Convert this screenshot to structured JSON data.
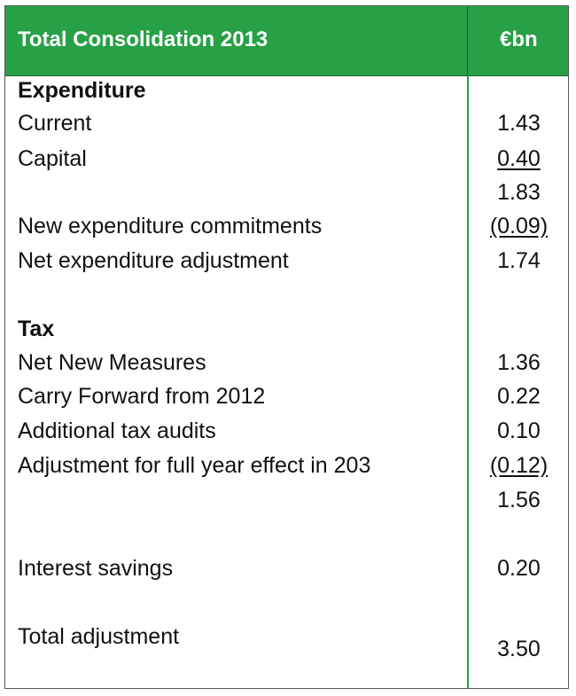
{
  "header": {
    "title": "Total Consolidation 2013",
    "unit": "€bn"
  },
  "rows": [
    {
      "label": "Expenditure",
      "value": "",
      "bold": true,
      "underline": false
    },
    {
      "label": "Current",
      "value": "1.43",
      "bold": false,
      "underline": false
    },
    {
      "label": "Capital",
      "value": "0.40",
      "bold": false,
      "underline": true
    },
    {
      "label": "",
      "value": "1.83",
      "bold": false,
      "underline": false
    },
    {
      "label": "New expenditure commitments",
      "value": "(0.09)",
      "bold": false,
      "underline": true
    },
    {
      "label": "Net expenditure adjustment",
      "value": "1.74",
      "bold": false,
      "underline": false
    },
    {
      "label": "Tax",
      "value": "",
      "bold": true,
      "underline": false
    },
    {
      "label": "Net New Measures",
      "value": "1.36",
      "bold": false,
      "underline": false
    },
    {
      "label": "Carry Forward from 2012",
      "value": "0.22",
      "bold": false,
      "underline": false
    },
    {
      "label": "Additional tax audits",
      "value": "0.10",
      "bold": false,
      "underline": false
    },
    {
      "label": "Adjustment for full year effect in 203",
      "value": "(0.12)",
      "bold": false,
      "underline": true
    },
    {
      "label": "",
      "value": "1.56",
      "bold": false,
      "underline": false
    },
    {
      "label": "Interest savings",
      "value": "0.20",
      "bold": false,
      "underline": false
    },
    {
      "label": "Total adjustment",
      "value": "3.50",
      "bold": false,
      "underline": false
    }
  ]
}
